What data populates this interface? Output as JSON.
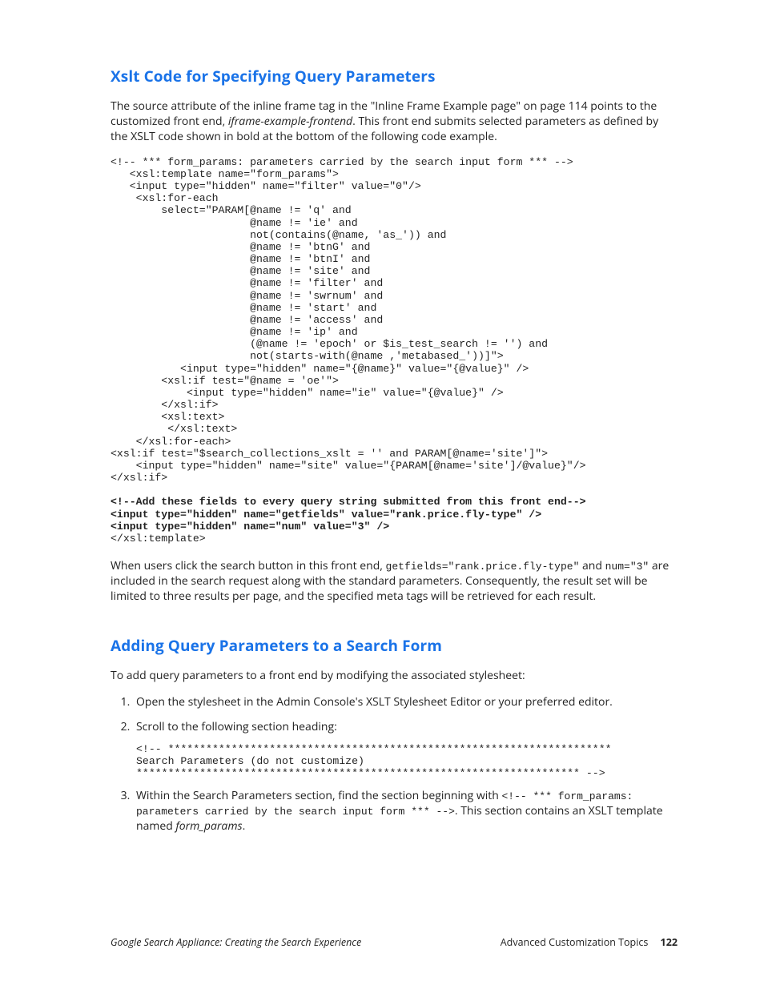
{
  "heading1": "Xslt Code for Specifying Query Parameters",
  "intro_before_link": "The source attribute of the inline frame tag in the ",
  "intro_link": "\"Inline Frame Example page\" on page 114",
  "intro_after_link": " points to the customized front end, ",
  "intro_em": "iframe-example-frontend",
  "intro_tail": ". This front end submits selected parameters as defined by the XSLT code shown in bold at the bottom of the following code example.",
  "code1_plain": "<!-- *** form_params: parameters carried by the search input form *** -->\n   <xsl:template name=\"form_params\">\n   <input type=\"hidden\" name=\"filter\" value=\"0\"/>\n    <xsl:for-each\n        select=\"PARAM[@name != 'q' and\n                      @name != 'ie' and\n                      not(contains(@name, 'as_')) and\n                      @name != 'btnG' and\n                      @name != 'btnI' and\n                      @name != 'site' and\n                      @name != 'filter' and\n                      @name != 'swrnum' and\n                      @name != 'start' and\n                      @name != 'access' and\n                      @name != 'ip' and\n                      (@name != 'epoch' or $is_test_search != '') and\n                      not(starts-with(@name ,'metabased_'))]\">\n           <input type=\"hidden\" name=\"{@name}\" value=\"{@value}\" />\n        <xsl:if test=\"@name = 'oe'\">\n            <input type=\"hidden\" name=\"ie\" value=\"{@value}\" />\n        </xsl:if>\n        <xsl:text>\n         </xsl:text>\n    </xsl:for-each>\n<xsl:if test=\"$search_collections_xslt = '' and PARAM[@name='site']\">\n    <input type=\"hidden\" name=\"site\" value=\"{PARAM[@name='site']/@value}\"/>\n</xsl:if>\n",
  "code1_bold": "<!--Add these fields to every query string submitted from this front end-->\n<input type=\"hidden\" name=\"getfields\" value=\"rank.price.fly-type\" />\n<input type=\"hidden\" name=\"num\" value=\"3\" />",
  "code1_close": "</xsl:template>",
  "para2_a": "When users click the search button in this front end, ",
  "para2_code1": "getfields=\"rank.price.fly-type\"",
  "para2_mid": " and ",
  "para2_code2": "num=\"3\"",
  "para2_b": " are included in the search request along with the standard parameters. Consequently, the result set will be limited to three results per page, and the specified meta tags will be retrieved for each result.",
  "heading2": "Adding Query Parameters to a Search Form",
  "h2_intro": "To add query parameters to a front end by modifying the associated stylesheet:",
  "step1": "Open the stylesheet in the Admin Console's XSLT Stylesheet Editor or your preferred editor.",
  "step2_lead": "Scroll to the following section heading:",
  "step2_code": "<!-- **********************************************************************\nSearch Parameters (do not customize)\n********************************************************************** -->",
  "step3_a": "Within the Search Parameters section, find the section beginning with ",
  "step3_code": "<!-- *** form_params: parameters carried by the search input form *** -->",
  "step3_b": ". This section contains an XSLT template named ",
  "step3_em": "form_params",
  "step3_c": ".",
  "footer_left": "Google Search Appliance: Creating the Search Experience",
  "footer_right_label": "Advanced Customization Topics",
  "footer_page": "122"
}
